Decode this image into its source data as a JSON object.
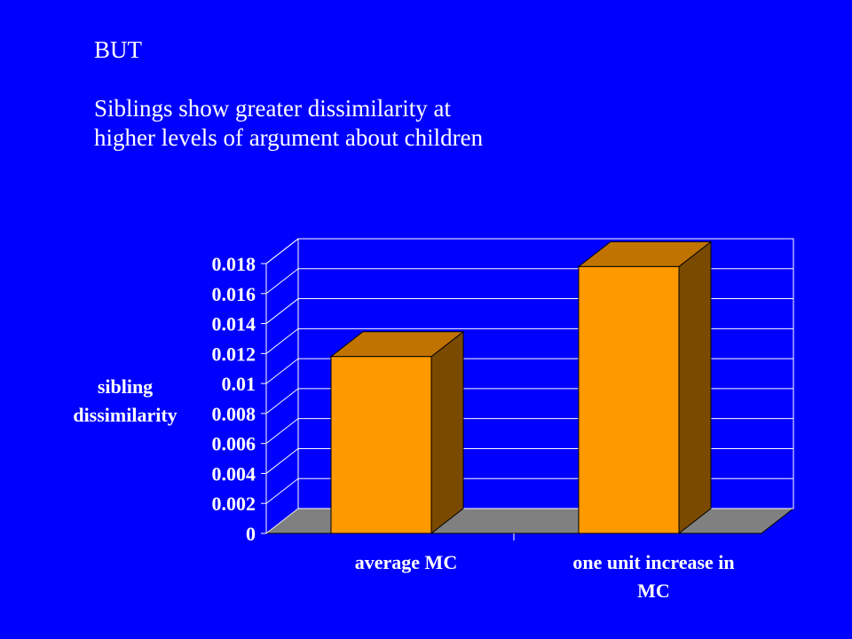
{
  "heading": {
    "lead": "BUT",
    "lines": [
      "Siblings show greater dissimilarity at",
      "higher levels of argument about children"
    ]
  },
  "chart_data": {
    "type": "bar",
    "categories": [
      [
        "average MC"
      ],
      [
        "one unit increase in",
        "MC"
      ]
    ],
    "values": [
      0.0118,
      0.0178
    ],
    "ylabel": [
      "sibling",
      "dissimilarity"
    ],
    "yticks": [
      "0",
      "0.002",
      "0.004",
      "0.006",
      "0.008",
      "0.01",
      "0.012",
      "0.014",
      "0.016",
      "0.018"
    ],
    "ylim": [
      0,
      0.018
    ],
    "grid": true,
    "colors": {
      "bar_front": "#ff9900",
      "bar_top": "#c07300",
      "bar_side": "#7a4a00",
      "floor": "#808080",
      "grid": "#ffffff",
      "background": "#0000ff"
    }
  }
}
